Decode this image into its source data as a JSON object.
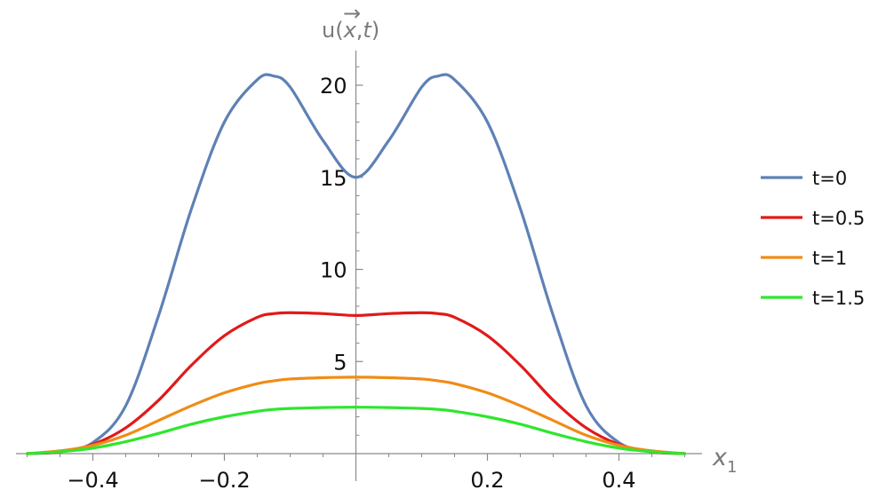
{
  "chart_data": {
    "type": "line",
    "title": "",
    "xlabel": "x",
    "xlabel_subscript": "1",
    "ylabel": "u(x,t)",
    "ylabel_parts": {
      "prefix": "u(",
      "vector_var": "x",
      "separator": ",",
      "time_var": "t",
      "suffix": ")",
      "arrow": "→"
    },
    "xlim": [
      -0.5,
      0.5
    ],
    "ylim": [
      0,
      21.5
    ],
    "x_ticks": [
      -0.4,
      -0.2,
      0.2,
      0.4
    ],
    "x_tick_labels": [
      "−0.4",
      "−0.2",
      "0.2",
      "0.4"
    ],
    "y_ticks": [
      5,
      10,
      15,
      20
    ],
    "y_tick_labels": [
      "5",
      "10",
      "15",
      "20"
    ],
    "grid": false,
    "legend_position": "right",
    "x": [
      -0.5,
      -0.45,
      -0.4,
      -0.35,
      -0.3,
      -0.25,
      -0.2,
      -0.15,
      -0.125,
      -0.1,
      -0.05,
      0,
      0.05,
      0.1,
      0.125,
      0.15,
      0.2,
      0.25,
      0.3,
      0.35,
      0.4,
      0.45,
      0.5
    ],
    "series": [
      {
        "name": "t=0",
        "color": "#5e81b5",
        "values": [
          0.0,
          0.1,
          0.6,
          2.6,
          7.5,
          13.3,
          18.0,
          20.3,
          20.5,
          19.9,
          17.0,
          15.0,
          17.0,
          19.9,
          20.5,
          20.3,
          18.0,
          13.3,
          7.5,
          2.6,
          0.6,
          0.1,
          0.0
        ]
      },
      {
        "name": "t=0.5",
        "color": "#e01a1a",
        "values": [
          0.0,
          0.1,
          0.5,
          1.4,
          2.9,
          4.8,
          6.4,
          7.4,
          7.6,
          7.65,
          7.6,
          7.5,
          7.6,
          7.65,
          7.6,
          7.4,
          6.4,
          4.8,
          2.9,
          1.4,
          0.5,
          0.1,
          0.0
        ]
      },
      {
        "name": "t=1",
        "color": "#f08c17",
        "values": [
          0.0,
          0.15,
          0.45,
          1.0,
          1.8,
          2.6,
          3.3,
          3.8,
          3.95,
          4.05,
          4.12,
          4.15,
          4.12,
          4.05,
          3.95,
          3.8,
          3.3,
          2.6,
          1.8,
          1.0,
          0.45,
          0.15,
          0.0
        ]
      },
      {
        "name": "t=1.5",
        "color": "#2ee62e",
        "values": [
          0.0,
          0.1,
          0.3,
          0.65,
          1.1,
          1.6,
          2.0,
          2.3,
          2.4,
          2.45,
          2.5,
          2.52,
          2.5,
          2.45,
          2.4,
          2.3,
          2.0,
          1.6,
          1.1,
          0.65,
          0.3,
          0.1,
          0.0
        ]
      }
    ]
  }
}
